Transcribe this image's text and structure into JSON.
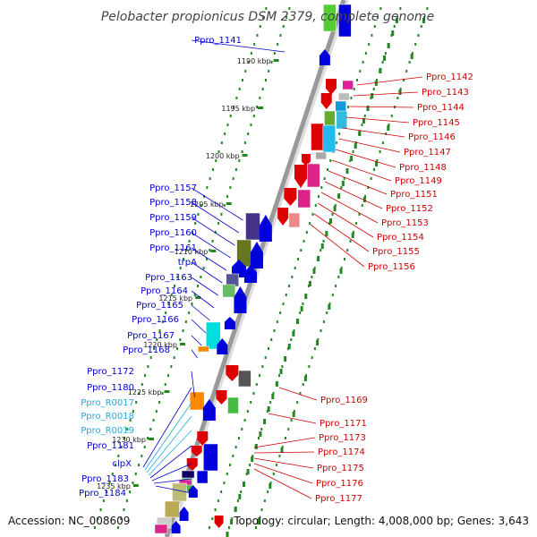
{
  "title": "Pelobacter propionicus DSM 2379, complete genome",
  "footer": {
    "accession": "Accession: NC_008609",
    "summary": "Topology: circular; Length: 4,008,000 bp; Genes: 3,643"
  },
  "colors": {
    "left_label": "#0000cc",
    "rna_label": "#22aadd",
    "right_label": "#cc0000",
    "backbone": "#999999",
    "tick_ring": "#228822"
  },
  "scale_ticks": [
    "1190 kbp",
    "1195 kbp",
    "1200 kbp",
    "1205 kbp",
    "1210 kbp",
    "1215 kbp",
    "1220 kbp",
    "1225 kbp",
    "1230 kbp",
    "1235 kbp"
  ],
  "left_labels": [
    "Ppro_1141",
    "Ppro_1157",
    "Ppro_1158",
    "Ppro_1159",
    "Ppro_1160",
    "Ppro_1161",
    "trpA",
    "Ppro_1163",
    "Ppro_1164",
    "Ppro_1165",
    "Ppro_1166",
    "Ppro_1167",
    "Ppro_1168",
    "Ppro_1172",
    "Ppro_1180",
    "Ppro_R0017",
    "Ppro_R0018",
    "Ppro_R0019",
    "Ppro_1181",
    "clpX",
    "Ppro_1183",
    "Ppro_1184"
  ],
  "right_labels": [
    "Ppro_1142",
    "Ppro_1143",
    "Ppro_1144",
    "Ppro_1145",
    "Ppro_1146",
    "Ppro_1147",
    "Ppro_1148",
    "Ppro_1149",
    "Ppro_1151",
    "Ppro_1152",
    "Ppro_1153",
    "Ppro_1154",
    "Ppro_1155",
    "Ppro_1156",
    "Ppro_1169",
    "Ppro_1171",
    "Ppro_1173",
    "Ppro_1174",
    "Ppro_1175",
    "Ppro_1176",
    "Ppro_1177"
  ]
}
